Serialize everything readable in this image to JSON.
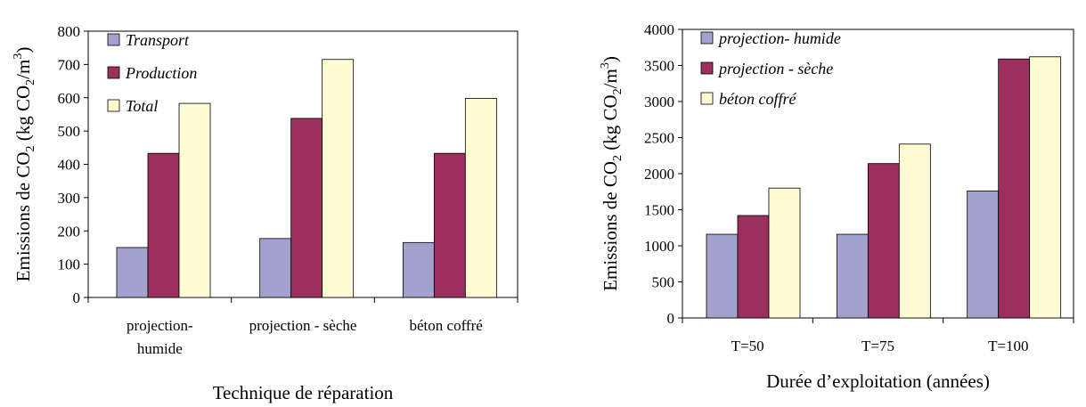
{
  "colors": {
    "series1": "#a3a2cf",
    "series2": "#9c2f5d",
    "series3": "#fffbd2"
  },
  "chart_data": [
    {
      "type": "bar",
      "title": "",
      "xlabel": "Technique de réparation",
      "ylabel_main": "Emissions de CO",
      "ylabel_sub": "2",
      "ylabel_rest": " (kg CO",
      "ylabel_sub2": "2",
      "ylabel_unit": "/m",
      "ylabel_sup": "3",
      "ylabel_close": ")",
      "ylim": [
        0,
        800
      ],
      "yticks": [
        "0",
        "100",
        "200",
        "300",
        "400",
        "500",
        "600",
        "700",
        "800"
      ],
      "categories": [
        {
          "line1": "projection-",
          "line2": "humide"
        },
        {
          "line1": "projection - sèche",
          "line2": ""
        },
        {
          "line1": "béton coffré",
          "line2": ""
        }
      ],
      "legend_position": "top-left",
      "series": [
        {
          "name": "Transport",
          "values": [
            150,
            177,
            165
          ]
        },
        {
          "name": "Production",
          "values": [
            433,
            538,
            433
          ]
        },
        {
          "name": "Total",
          "values": [
            583,
            715,
            598
          ]
        }
      ]
    },
    {
      "type": "bar",
      "title": "",
      "xlabel": "Durée d’exploitation (années)",
      "ylabel_main": "Emissions de CO",
      "ylabel_sub": "2",
      "ylabel_rest": " (kg CO",
      "ylabel_sub2": "2",
      "ylabel_unit": "/m",
      "ylabel_sup": "3",
      "ylabel_close": ")",
      "ylim": [
        0,
        4000
      ],
      "yticks": [
        "0",
        "500",
        "1000",
        "1500",
        "2000",
        "2500",
        "3000",
        "3500",
        "4000"
      ],
      "categories": [
        {
          "line1": "T=50",
          "line2": ""
        },
        {
          "line1": "T=75",
          "line2": ""
        },
        {
          "line1": "T=100",
          "line2": ""
        }
      ],
      "legend_position": "top-left",
      "series": [
        {
          "name": "projection- humide",
          "values": [
            1160,
            1160,
            1760
          ]
        },
        {
          "name": "projection - sèche",
          "values": [
            1420,
            2140,
            3590
          ]
        },
        {
          "name": "béton coffré",
          "values": [
            1800,
            2410,
            3620
          ]
        }
      ]
    }
  ]
}
